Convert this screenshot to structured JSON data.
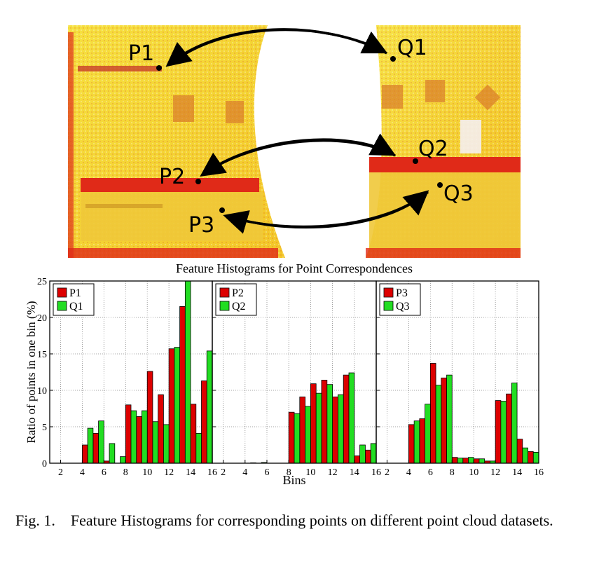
{
  "photo": {
    "labels": {
      "p1": "P1",
      "q1": "Q1",
      "p2": "P2",
      "q2": "Q2",
      "p3": "P3",
      "q3": "Q3"
    }
  },
  "chart_data": {
    "type": "bar",
    "title": "Feature Histograms for Point Correspondences",
    "ylabel": "Ratio of points in one bin (%)",
    "xlabel": "Bins",
    "ylim": [
      0,
      25
    ],
    "yticks": [
      0,
      5,
      10,
      15,
      20,
      25
    ],
    "xlim": [
      1,
      16
    ],
    "xticks": [
      2,
      4,
      6,
      8,
      10,
      12,
      14,
      16
    ],
    "grid": true,
    "legend_position": "top-left",
    "colors": {
      "first": "#dd0000",
      "second": "#22dd22"
    },
    "bins": [
      1,
      2,
      3,
      4,
      5,
      6,
      7,
      8,
      9,
      10,
      11,
      12,
      13,
      14,
      15
    ],
    "panels": [
      {
        "series": [
          {
            "name": "P1",
            "values": [
              0,
              0,
              0,
              2.5,
              4.1,
              0.3,
              0,
              8.0,
              6.4,
              12.6,
              9.4,
              15.7,
              21.5,
              8.1,
              11.3
            ]
          },
          {
            "name": "Q1",
            "values": [
              0,
              0,
              0,
              4.8,
              5.8,
              2.7,
              0.9,
              7.2,
              7.2,
              5.7,
              5.3,
              15.9,
              25.0,
              4.1,
              15.4
            ]
          }
        ]
      },
      {
        "series": [
          {
            "name": "P2",
            "values": [
              0,
              0,
              0,
              0,
              0,
              0,
              0,
              7.0,
              9.1,
              10.9,
              11.4,
              9.1,
              12.1,
              1.0,
              1.8
            ]
          },
          {
            "name": "Q2",
            "values": [
              0,
              0,
              0,
              0.05,
              0.1,
              0,
              0,
              6.8,
              7.8,
              9.6,
              10.8,
              9.4,
              12.4,
              2.5,
              2.7
            ]
          }
        ]
      },
      {
        "series": [
          {
            "name": "P3",
            "values": [
              0,
              0,
              0,
              5.3,
              6.1,
              13.7,
              11.7,
              0.8,
              0.7,
              0.6,
              0.3,
              8.6,
              9.5,
              3.3,
              1.6
            ]
          },
          {
            "name": "Q3",
            "values": [
              0,
              0,
              0,
              5.8,
              8.1,
              10.7,
              12.1,
              0.7,
              0.8,
              0.6,
              0.3,
              8.5,
              11.0,
              2.1,
              1.5
            ]
          }
        ]
      }
    ]
  },
  "caption": {
    "label": "Fig. 1.",
    "text": "Feature Histograms for corresponding points on different point cloud datasets."
  }
}
